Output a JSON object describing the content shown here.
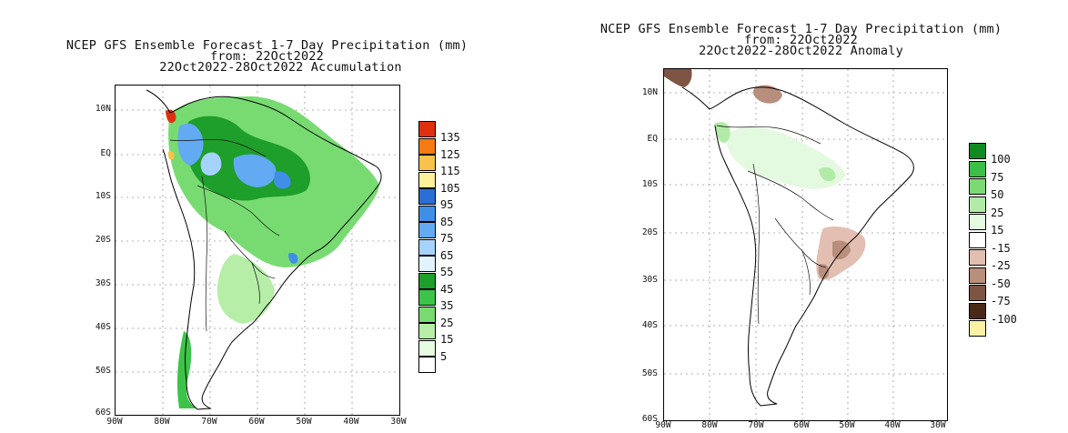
{
  "panels": [
    {
      "id": "accumulation",
      "title_lines": [
        "NCEP GFS Ensemble Forecast 1-7 Day Precipitation (mm)",
        "from: 22Oct2022",
        "22Oct2022-28Oct2022 Accumulation"
      ],
      "lat_labels": [
        "10N",
        "EQ",
        "10S",
        "20S",
        "30S",
        "40S",
        "50S",
        "60S"
      ],
      "lon_labels": [
        "90W",
        "80W",
        "70W",
        "60W",
        "50W",
        "40W",
        "30W"
      ],
      "legend": [
        {
          "label": "135",
          "color": "#e03010"
        },
        {
          "label": "125",
          "color": "#f57b12"
        },
        {
          "label": "115",
          "color": "#f9c24a"
        },
        {
          "label": "105",
          "color": "#fff09a"
        },
        {
          "label": "95",
          "color": "#2b6fd6"
        },
        {
          "label": "85",
          "color": "#3f8fe8"
        },
        {
          "label": "75",
          "color": "#62aaf2"
        },
        {
          "label": "65",
          "color": "#a6d3fb"
        },
        {
          "label": "55",
          "color": "#e3f3fd"
        },
        {
          "label": "45",
          "color": "#1e9e2a"
        },
        {
          "label": "35",
          "color": "#3cc448"
        },
        {
          "label": "25",
          "color": "#78db72"
        },
        {
          "label": "15",
          "color": "#b6eea8"
        },
        {
          "label": "5",
          "color": "#e6fbe0"
        },
        {
          "label": "",
          "color": "#ffffff"
        }
      ]
    },
    {
      "id": "anomaly",
      "title_lines": [
        "NCEP GFS Ensemble Forecast 1-7 Day Precipitation (mm)",
        "from: 22Oct2022",
        "22Oct2022-28Oct2022 Anomaly"
      ],
      "lat_labels": [
        "10N",
        "EQ",
        "10S",
        "20S",
        "30S",
        "40S",
        "50S",
        "60S"
      ],
      "lon_labels": [
        "90W",
        "80W",
        "70W",
        "60W",
        "50W",
        "40W",
        "30W"
      ],
      "legend": [
        {
          "label": "100",
          "color": "#128a22"
        },
        {
          "label": "75",
          "color": "#3cbf46"
        },
        {
          "label": "50",
          "color": "#7bda74"
        },
        {
          "label": "25",
          "color": "#b2eba8"
        },
        {
          "label": "15",
          "color": "#e4fae0"
        },
        {
          "label": "-15",
          "color": "#ffffff"
        },
        {
          "label": "-25",
          "color": "#e2bfb1"
        },
        {
          "label": "-50",
          "color": "#b88e7c"
        },
        {
          "label": "-75",
          "color": "#7e5544"
        },
        {
          "label": "-100",
          "color": "#4a2818"
        },
        {
          "label": "",
          "color": "#fbf2a4"
        }
      ]
    }
  ]
}
